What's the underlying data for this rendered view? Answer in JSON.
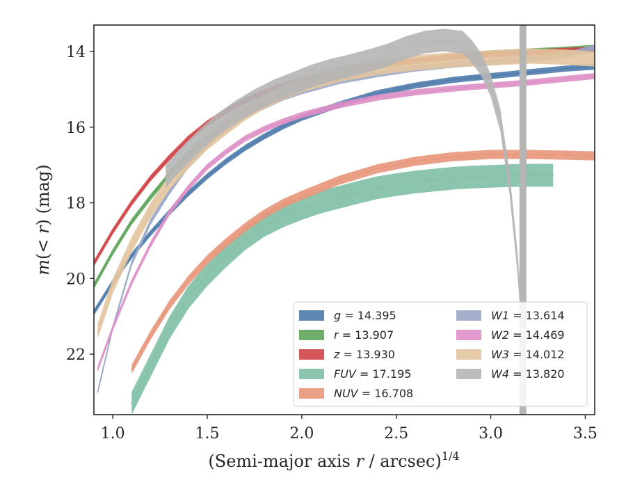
{
  "chart_data": {
    "type": "line",
    "xlabel": "(Semi-major axis r / arcsec)^1/4",
    "ylabel": "m(< r) (mag)",
    "xlim": [
      0.9,
      3.55
    ],
    "ylim": [
      23.6,
      13.3
    ],
    "y_inverted": true,
    "grid": false,
    "legend_position": "lower-right",
    "x_ticks": [
      "1.0",
      "1.5",
      "2.0",
      "2.5",
      "3.0",
      "3.5"
    ],
    "y_ticks": [
      "14",
      "16",
      "18",
      "20",
      "22"
    ],
    "x_tick_values": [
      1.0,
      1.5,
      2.0,
      2.5,
      3.0,
      3.5
    ],
    "y_tick_values": [
      14,
      16,
      18,
      20,
      22
    ],
    "series": [
      {
        "name": "g = 14.395",
        "label_var": "g",
        "label_val": "14.395",
        "color": "#4c7bab",
        "band": 0.08,
        "x": [
          0.9,
          1.0,
          1.1,
          1.2,
          1.3,
          1.4,
          1.5,
          1.6,
          1.7,
          1.8,
          1.9,
          2.0,
          2.2,
          2.4,
          2.6,
          2.8,
          3.0,
          3.2,
          3.4,
          3.55
        ],
        "y": [
          20.9,
          20.1,
          19.4,
          18.8,
          18.25,
          17.75,
          17.3,
          16.9,
          16.55,
          16.25,
          15.98,
          15.75,
          15.4,
          15.1,
          14.9,
          14.75,
          14.65,
          14.55,
          14.45,
          14.4
        ]
      },
      {
        "name": "r = 13.907",
        "label_var": "r",
        "label_val": "13.907",
        "color": "#5fa55a",
        "band": 0.08,
        "x": [
          0.9,
          1.0,
          1.1,
          1.2,
          1.3,
          1.4,
          1.5,
          1.6,
          1.7,
          1.8,
          1.9,
          2.0,
          2.2,
          2.4,
          2.6,
          2.8,
          3.0,
          3.2,
          3.4,
          3.55
        ],
        "y": [
          20.2,
          19.3,
          18.5,
          17.85,
          17.25,
          16.75,
          16.3,
          15.95,
          15.6,
          15.35,
          15.12,
          14.93,
          14.62,
          14.4,
          14.25,
          14.15,
          14.05,
          14.0,
          13.95,
          13.9
        ]
      },
      {
        "name": "z = 13.930",
        "label_var": "z",
        "label_val": "13.930",
        "color": "#cf4446",
        "band": 0.08,
        "x": [
          0.9,
          1.0,
          1.1,
          1.2,
          1.3,
          1.4,
          1.5,
          1.6,
          1.7,
          1.8,
          1.9,
          2.0,
          2.2,
          2.4,
          2.6,
          2.8,
          3.0,
          3.2,
          3.4,
          3.55
        ],
        "y": [
          19.6,
          18.75,
          18.0,
          17.35,
          16.8,
          16.3,
          15.9,
          15.58,
          15.3,
          15.08,
          14.9,
          14.75,
          14.52,
          14.35,
          14.25,
          14.15,
          14.08,
          14.03,
          13.98,
          13.95
        ]
      },
      {
        "name": "FUV = 17.195",
        "label_var": "FUV",
        "label_val": "17.195",
        "color": "#7fbfa5",
        "band": 0.3,
        "x": [
          1.1,
          1.2,
          1.3,
          1.4,
          1.5,
          1.6,
          1.7,
          1.8,
          1.9,
          2.0,
          2.1,
          2.2,
          2.3,
          2.4,
          2.5,
          2.6,
          2.7,
          2.8,
          2.9,
          3.0,
          3.1,
          3.2,
          3.33
        ],
        "y": [
          23.3,
          22.3,
          21.3,
          20.5,
          19.9,
          19.4,
          18.95,
          18.6,
          18.35,
          18.15,
          17.98,
          17.85,
          17.72,
          17.6,
          17.52,
          17.45,
          17.4,
          17.35,
          17.32,
          17.3,
          17.28,
          17.27,
          17.27
        ]
      },
      {
        "name": "NUV = 16.708",
        "label_var": "NUV",
        "label_val": "16.708",
        "color": "#e8957a",
        "band": 0.12,
        "x": [
          1.1,
          1.2,
          1.3,
          1.4,
          1.5,
          1.6,
          1.7,
          1.8,
          1.9,
          2.0,
          2.2,
          2.4,
          2.6,
          2.8,
          3.0,
          3.2,
          3.4,
          3.55
        ],
        "y": [
          22.4,
          21.5,
          20.7,
          20.05,
          19.5,
          19.05,
          18.65,
          18.3,
          18.02,
          17.8,
          17.4,
          17.1,
          16.9,
          16.78,
          16.72,
          16.72,
          16.74,
          16.76
        ]
      },
      {
        "name": "W1 = 13.614",
        "label_var": "W1",
        "label_val": "13.614",
        "color": "#9aa7c7",
        "band": 0.08,
        "x": [
          0.92,
          1.0,
          1.1,
          1.2,
          1.3,
          1.4,
          1.5,
          1.6,
          1.7,
          1.8,
          1.9,
          2.0,
          2.2,
          2.4,
          2.6,
          2.8,
          3.0,
          3.2,
          3.4,
          3.55
        ],
        "y": [
          23.0,
          21.3,
          19.6,
          18.5,
          17.7,
          17.0,
          16.45,
          16.05,
          15.7,
          15.45,
          15.22,
          15.05,
          14.78,
          14.6,
          14.45,
          14.35,
          14.28,
          14.2,
          14.1,
          13.9
        ]
      },
      {
        "name": "W2 = 14.469",
        "label_var": "W2",
        "label_val": "14.469",
        "color": "#de8fc7",
        "band": 0.08,
        "x": [
          0.92,
          1.0,
          1.1,
          1.2,
          1.3,
          1.4,
          1.5,
          1.6,
          1.7,
          1.8,
          1.9,
          2.0,
          2.2,
          2.4,
          2.6,
          2.8,
          3.0,
          3.2,
          3.4,
          3.55
        ],
        "y": [
          22.4,
          21.3,
          20.1,
          19.1,
          18.25,
          17.6,
          17.05,
          16.65,
          16.3,
          16.05,
          15.85,
          15.68,
          15.42,
          15.22,
          15.08,
          14.98,
          14.9,
          14.82,
          14.72,
          14.65
        ]
      },
      {
        "name": "W3 = 14.012",
        "label_var": "W3",
        "label_val": "14.012",
        "color": "#e3c5a0",
        "band": 0.2,
        "x": [
          0.92,
          1.0,
          1.1,
          1.2,
          1.3,
          1.4,
          1.5,
          1.6,
          1.7,
          1.8,
          1.9,
          2.0,
          2.2,
          2.4,
          2.6,
          2.8,
          3.0,
          3.2,
          3.4,
          3.55
        ],
        "y": [
          21.4,
          20.2,
          19.1,
          18.2,
          17.45,
          16.9,
          16.4,
          16.0,
          15.62,
          15.32,
          15.08,
          14.88,
          14.6,
          14.42,
          14.3,
          14.22,
          14.17,
          14.12,
          14.15,
          14.2
        ]
      },
      {
        "name": "W4 = 13.820",
        "label_var": "W4",
        "label_val": "13.820",
        "color": "#b5b5b5",
        "band": 0.3,
        "x": [
          1.28,
          1.35,
          1.45,
          1.55,
          1.65,
          1.75,
          1.85,
          1.95,
          2.05,
          2.15,
          2.25,
          2.35,
          2.45,
          2.55,
          2.65,
          2.75,
          2.85,
          2.9,
          2.95,
          3.0,
          3.05,
          3.1,
          3.14,
          3.17
        ],
        "y": [
          17.3,
          16.9,
          16.4,
          15.95,
          15.6,
          15.3,
          15.05,
          14.85,
          14.65,
          14.5,
          14.38,
          14.25,
          14.1,
          13.9,
          13.75,
          13.7,
          13.75,
          14.0,
          14.35,
          14.9,
          15.8,
          17.5,
          19.5,
          21.5
        ]
      }
    ],
    "w4_spike": {
      "x": 3.17,
      "color": "#b5b5b5"
    }
  }
}
